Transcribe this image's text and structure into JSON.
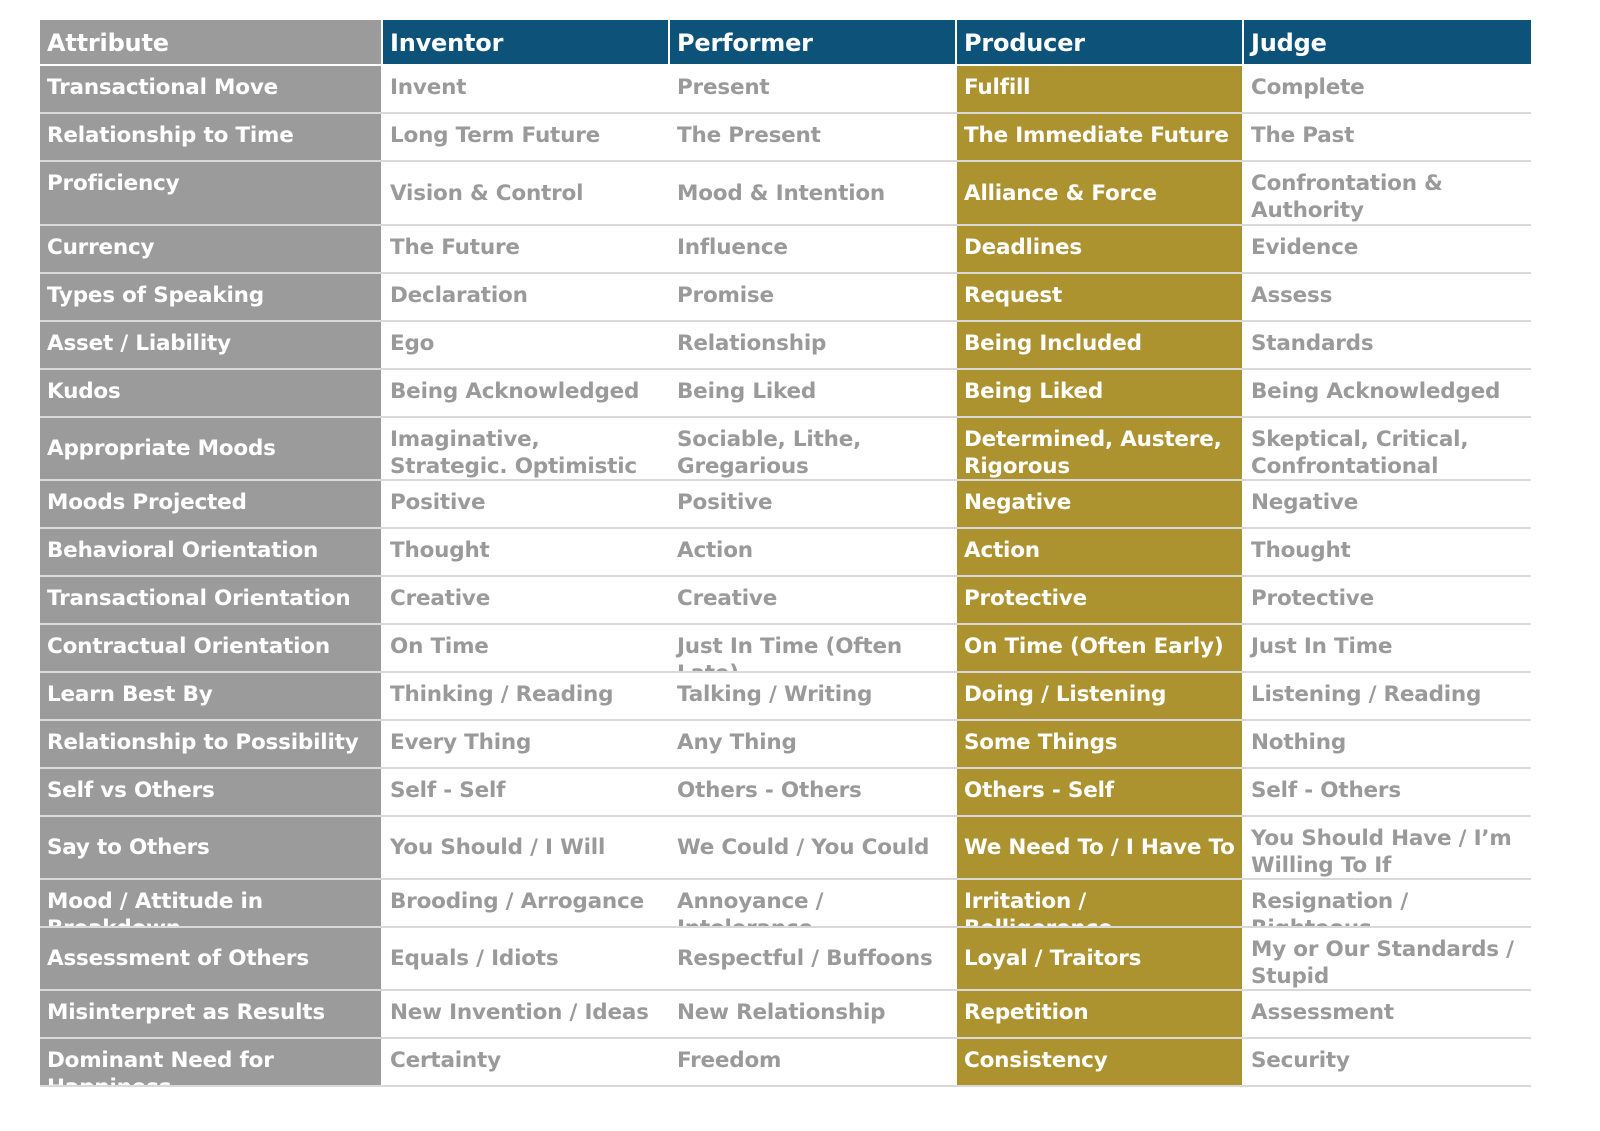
{
  "chart_data": {
    "type": "table",
    "columns": [
      "Attribute",
      "Inventor",
      "Performer",
      "Producer",
      "Judge"
    ],
    "rows": [
      [
        "Transactional Move",
        "Invent",
        "Present",
        "Fulfill",
        "Complete"
      ],
      [
        "Relationship to Time",
        "Long Term Future",
        "The Present",
        "The Immediate Future",
        "The Past"
      ],
      [
        "Proficiency",
        "Vision & Control",
        "Mood & Intention",
        "Alliance & Force",
        "Confrontation & Authority"
      ],
      [
        "Currency",
        "The Future",
        "Influence",
        "Deadlines",
        "Evidence"
      ],
      [
        "Types of Speaking",
        "Declaration",
        "Promise",
        "Request",
        "Assess"
      ],
      [
        "Asset / Liability",
        "Ego",
        "Relationship",
        "Being Included",
        "Standards"
      ],
      [
        "Kudos",
        "Being Acknowledged",
        "Being Liked",
        "Being Liked",
        "Being Acknowledged"
      ],
      [
        "Appropriate Moods",
        "Imaginative, Strategic. Optimistic",
        "Sociable, Lithe, Gregarious",
        "Determined, Austere, Rigorous",
        "Skeptical, Critical, Confrontational"
      ],
      [
        "Moods Projected",
        "Positive",
        "Positive",
        "Negative",
        "Negative"
      ],
      [
        "Behavioral Orientation",
        "Thought",
        "Action",
        "Action",
        "Thought"
      ],
      [
        "Transactional Orientation",
        "Creative",
        "Creative",
        "Protective",
        "Protective"
      ],
      [
        "Contractual Orientation",
        "On Time",
        "Just In Time (Often Late)",
        "On Time (Often Early)",
        "Just In Time"
      ],
      [
        "Learn Best By",
        "Thinking / Reading",
        "Talking / Writing",
        "Doing / Listening",
        "Listening / Reading"
      ],
      [
        "Relationship to Possibility",
        "Every Thing",
        "Any Thing",
        "Some Things",
        "Nothing"
      ],
      [
        "Self vs Others",
        "Self - Self",
        "Others - Others",
        "Others - Self",
        "Self - Others"
      ],
      [
        "Say to Others",
        "You Should / I Will",
        "We Could / You Could",
        "We Need To / I Have To",
        "You Should Have / I’m Willing To If"
      ],
      [
        "Mood / Attitude in Breakdown",
        "Brooding / Arrogance",
        "Annoyance / Intolerance",
        "Irritation / Belligerence",
        "Resignation / Righteous"
      ],
      [
        "Assessment of Others",
        "Equals / Idiots",
        "Respectful / Buffoons",
        "Loyal / Traitors",
        "My or Our Standards / Stupid"
      ],
      [
        "Misinterpret as Results",
        "New Invention / Ideas",
        "New Relationship",
        "Repetition",
        "Assessment"
      ],
      [
        "Dominant Need for Happiness",
        "Certainty",
        "Freedom",
        "Consistency",
        "Security"
      ]
    ],
    "colors": {
      "attribute_column": "#9b9b9b",
      "header": "#0d5279",
      "highlight_column": "#ac9330",
      "body_text": "#9a9a9a",
      "highlight_text": "#ffffff"
    }
  }
}
